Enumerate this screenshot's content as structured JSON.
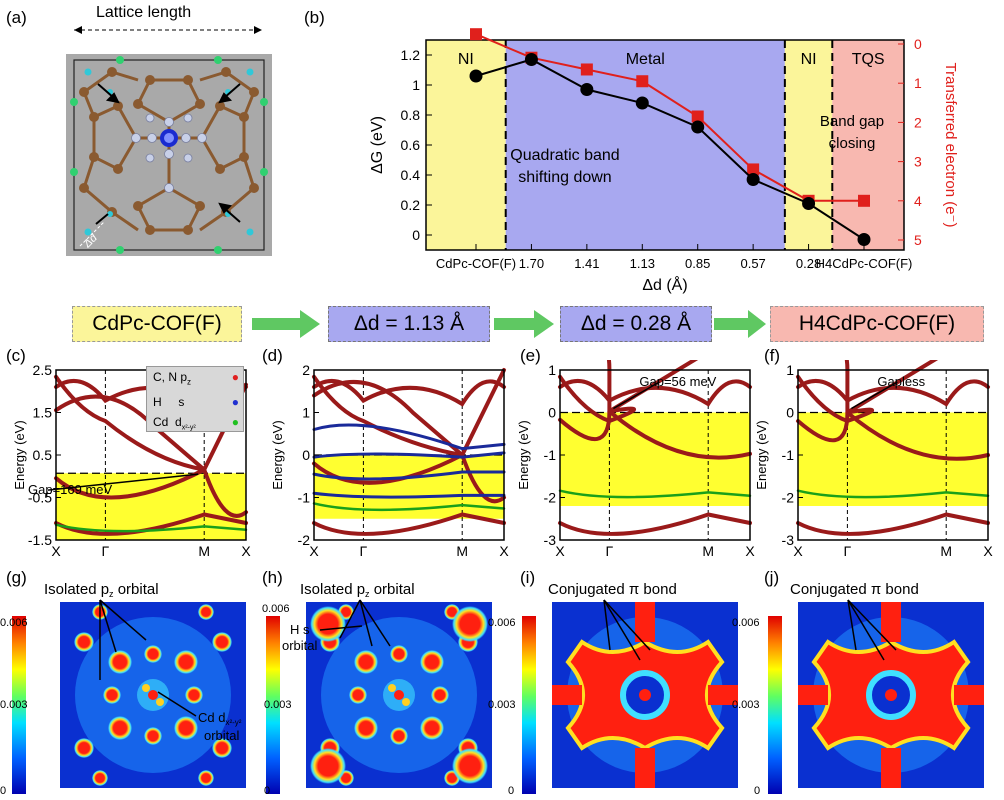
{
  "panel_labels": {
    "a": "(a)",
    "b": "(b)",
    "c": "(c)",
    "d": "(d)",
    "e": "(e)",
    "f": "(f)",
    "g": "(g)",
    "h": "(h)",
    "i": "(i)",
    "j": "(j)"
  },
  "lattice": {
    "title": "Lattice length",
    "delta": "Δd"
  },
  "chart_data": [
    {
      "type": "line",
      "id": "b",
      "categories": [
        "CdPc-COF(F)",
        "1.70",
        "1.41",
        "1.13",
        "0.85",
        "0.57",
        "0.28",
        "H4CdPc-COF(F)"
      ],
      "xlabel": "Δd (Å)",
      "ylabel": "ΔG (eV)",
      "ylim": [
        -0.1,
        1.3
      ],
      "yticks": [
        "0",
        "0.2",
        "0.4",
        "0.6",
        "0.8",
        "1",
        "1.2"
      ],
      "y2label": "Transferred electron (e⁻)",
      "y2ticks": [
        "0",
        "1",
        "2",
        "3",
        "4",
        "5"
      ],
      "series": [
        {
          "name": "ΔG",
          "color": "#000000",
          "values": [
            1.06,
            1.17,
            0.97,
            0.88,
            0.72,
            0.37,
            0.21,
            -0.03
          ]
        },
        {
          "name": "Transferred electron",
          "color": "#e0201c",
          "axis": "right",
          "values": [
            -0.25,
            0.35,
            0.65,
            0.95,
            1.85,
            3.2,
            4.0,
            4.0
          ]
        }
      ],
      "regions": [
        {
          "label": "NI",
          "color": "#fbf59a"
        },
        {
          "label": "Metal",
          "color": "#a8a8f0"
        },
        {
          "label": "NI",
          "color": "#fbf59a"
        },
        {
          "label": "TQS",
          "color": "#f8b8b0"
        }
      ],
      "annotations": [
        "Quadratic band",
        "shifting down",
        "Band gap",
        "closing"
      ]
    },
    {
      "type": "line",
      "id": "c",
      "ylabel": "Energy (eV)",
      "ylim": [
        -1.5,
        2.5
      ],
      "yticks": [
        "-1.5",
        "-0.5",
        "0.5",
        "1.5",
        "2.5"
      ],
      "xticks": [
        "X",
        "Γ",
        "M",
        "X"
      ],
      "annotation": "Gap=169 meV"
    },
    {
      "type": "line",
      "id": "d",
      "ylabel": "Energy (eV)",
      "ylim": [
        -2,
        2
      ],
      "yticks": [
        "-2",
        "-1",
        "0",
        "1",
        "2"
      ],
      "xticks": [
        "X",
        "Γ",
        "M",
        "X"
      ]
    },
    {
      "type": "line",
      "id": "e",
      "ylabel": "Energy (eV)",
      "ylim": [
        -3,
        1
      ],
      "yticks": [
        "-3",
        "-2",
        "-1",
        "0",
        "1"
      ],
      "xticks": [
        "X",
        "Γ",
        "M",
        "X"
      ],
      "annotation": "Gap=56 meV"
    },
    {
      "type": "line",
      "id": "f",
      "ylabel": "Energy (eV)",
      "ylim": [
        -3,
        1
      ],
      "yticks": [
        "-3",
        "-2",
        "-1",
        "0",
        "1"
      ],
      "xticks": [
        "X",
        "Γ",
        "M",
        "X"
      ],
      "annotation": "Gapless"
    },
    {
      "type": "heatmap",
      "id": "colorbars",
      "ticks": [
        "0.006",
        "0.003",
        "0"
      ]
    }
  ],
  "legend_c": {
    "row1": "C, N p",
    "row1_sub": "z",
    "row2a": "H",
    "row2b": "s",
    "row3a": "Cd",
    "row3b": "d",
    "row3_sub": "x²-y²"
  },
  "headers": {
    "h1": "CdPc-COF(F)",
    "h2": "Δd = 1.13 Å",
    "h3": "Δd = 0.28 Å",
    "h4": "H4CdPc-COF(F)"
  },
  "maps": {
    "g_title": "Isolated p",
    "g_title_sub": "z",
    "g_title_end": " orbital",
    "g_note1": "Cd d",
    "g_note1_sub": "x²-y²",
    "g_note2": "orbital",
    "h_title": "Isolated p",
    "h_title_sub": "z",
    "h_title_end": " orbital",
    "h_note1": "H s",
    "h_note2": "orbital",
    "i_title": "Conjugated π bond",
    "j_title": "Conjugated π bond"
  },
  "colors": {
    "ni": "#fbf59a",
    "metal": "#a8a8f0",
    "tqs": "#f8b8b0",
    "band": "#9a1a1a",
    "blue_band": "#1a2a9a",
    "green_band": "#1aa01a",
    "arrow": "#5fc862"
  }
}
